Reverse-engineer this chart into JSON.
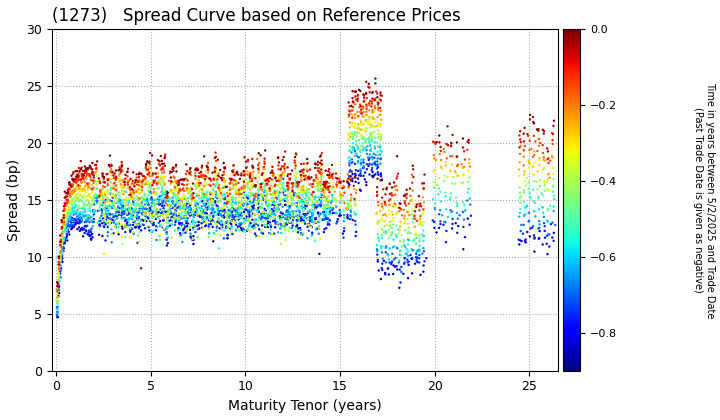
{
  "title": "(1273)   Spread Curve based on Reference Prices",
  "xlabel": "Maturity Tenor (years)",
  "ylabel": "Spread (bp)",
  "colorbar_label": "Time in years between 5/2/2025 and Trade Date\n(Past Trade Date is given as negative)",
  "xlim": [
    -0.2,
    26.5
  ],
  "ylim": [
    0,
    30
  ],
  "xticks": [
    0,
    5,
    10,
    15,
    20,
    25
  ],
  "yticks": [
    0,
    5,
    10,
    15,
    20,
    25,
    30
  ],
  "color_min": -0.9,
  "color_max": 0.0,
  "colorbar_ticks": [
    0.0,
    -0.2,
    -0.4,
    -0.6,
    -0.8
  ],
  "marker_size": 3,
  "background_color": "#ffffff",
  "grid_color": "#aaaaaa"
}
